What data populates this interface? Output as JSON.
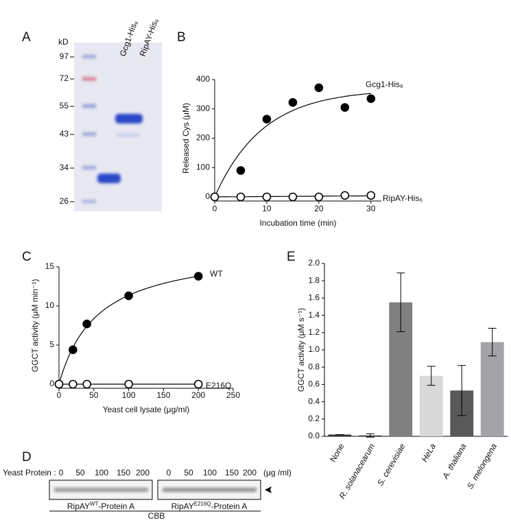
{
  "figure": {
    "panel_labels": [
      "A",
      "B",
      "C",
      "D",
      "E"
    ]
  },
  "gel": {
    "unit": "kD",
    "markers": [
      97,
      72,
      55,
      43,
      34,
      26
    ],
    "lanes": [
      "Gcg1-His₆",
      "RipAY-His₆"
    ]
  },
  "blot": {
    "row_label": "Yeast Protein :",
    "amounts": [
      0,
      50,
      100,
      150,
      200
    ],
    "amount_unit": "(μg /ml)",
    "blots": [
      {
        "name": "RipAY",
        "sup": "WT",
        "suffix": "-Protein A"
      },
      {
        "name": "RipAY",
        "sup": "E216Q",
        "suffix": "-Protein A"
      }
    ],
    "stain": "CBB"
  },
  "chart_data": [
    {
      "type": "scatter",
      "x_label": "Incubation time (min)",
      "y_label": "Released Cys (μM)",
      "x": [
        0,
        5,
        10,
        15,
        20,
        25,
        30
      ],
      "series": [
        {
          "name": "Gcg1-His₆",
          "color": "#000000",
          "values": [
            0,
            90,
            265,
            322,
            372,
            305,
            335
          ]
        },
        {
          "name": "RipAY-His₆",
          "color": "#ffffff",
          "values": [
            0,
            0,
            0,
            0,
            0,
            5,
            5
          ]
        }
      ],
      "xlim": [
        0,
        32
      ],
      "xticks": [
        0,
        10,
        20,
        30
      ],
      "ylim": [
        0,
        400
      ],
      "yticks": [
        0,
        100,
        200,
        300,
        400
      ]
    },
    {
      "type": "scatter",
      "x_label": "Yeast cell lysate (μg/ml)",
      "y_label": "GGCT activity (μM min⁻¹)",
      "x": [
        0,
        20,
        40,
        100,
        200
      ],
      "series": [
        {
          "name": "WT",
          "color": "#000000",
          "values": [
            0,
            4.4,
            7.7,
            11.3,
            13.8
          ]
        },
        {
          "name": "E216Q",
          "color": "#ffffff",
          "values": [
            0,
            0,
            0,
            0,
            0
          ]
        }
      ],
      "xlim": [
        0,
        250
      ],
      "xticks": [
        0,
        50,
        100,
        150,
        200,
        250
      ],
      "ylim": [
        0,
        15
      ],
      "yticks": [
        0,
        5,
        10,
        15
      ]
    },
    {
      "type": "bar",
      "y_label": "GGCT activity (μM s⁻¹)",
      "categories": [
        "None",
        "R. solanacearum",
        "S. cerevisiae",
        "HeLa",
        "A. thaliana",
        "S. melongena"
      ],
      "values": [
        0.02,
        0.01,
        1.55,
        0.7,
        0.53,
        1.09
      ],
      "errors": [
        0,
        0.02,
        0.34,
        0.11,
        0.29,
        0.16
      ],
      "colors": [
        "#333333",
        "#333333",
        "#808080",
        "#d9d9d9",
        "#595959",
        "#a3a3a8"
      ],
      "ylim": [
        0,
        2.0
      ],
      "yticks": [
        {
          "value": 0,
          "label": "0.0"
        },
        {
          "value": 0.2,
          "label": "0.2"
        },
        {
          "value": 0.4,
          "label": "0.4"
        },
        {
          "value": 0.6,
          "label": "0.6"
        },
        {
          "value": 0.8,
          "label": "0.8"
        },
        {
          "value": 1.0,
          "label": "1.0"
        },
        {
          "value": 1.2,
          "label": "1.2"
        },
        {
          "value": 1.4,
          "label": "1.4"
        },
        {
          "value": 1.6,
          "label": "1.6"
        },
        {
          "value": 1.8,
          "label": "1.8"
        },
        {
          "value": 2.0,
          "label": "2.0"
        }
      ]
    }
  ]
}
